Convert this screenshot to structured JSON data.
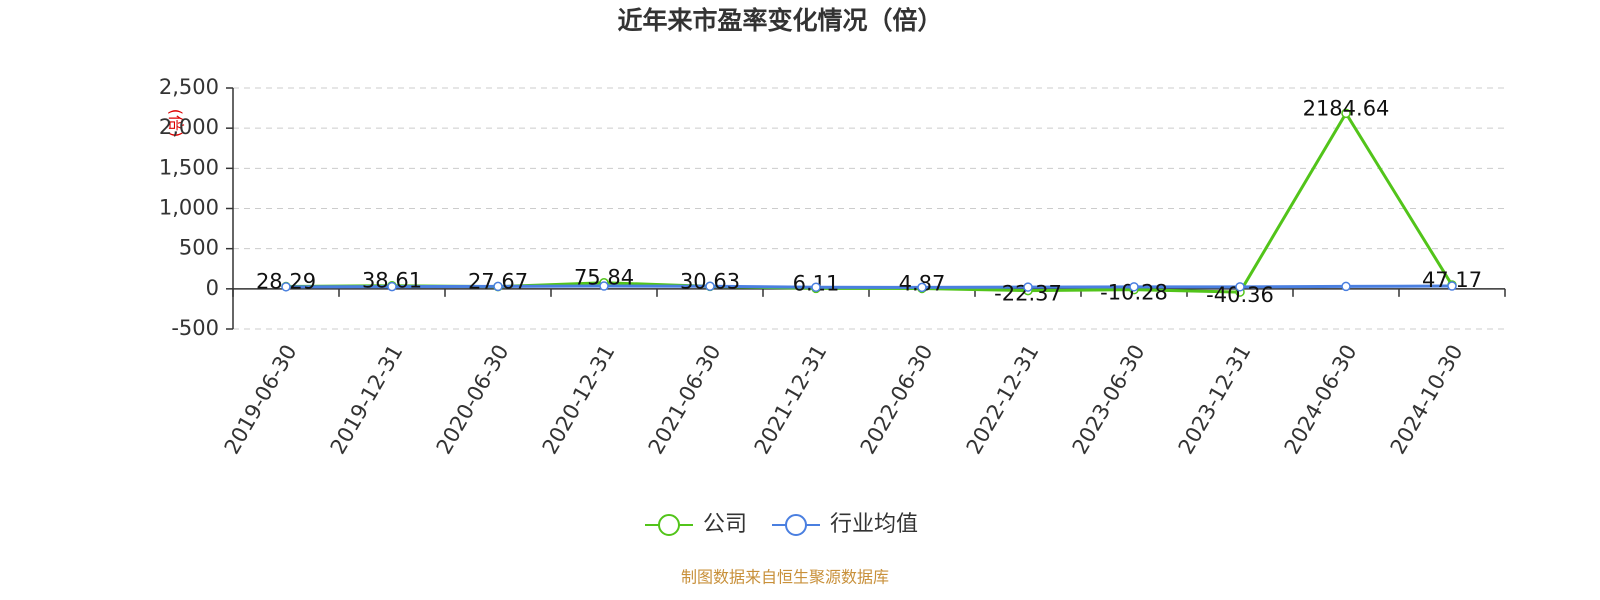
{
  "chart_data": {
    "type": "line",
    "title": "近年来市盈率变化情况（倍）",
    "y_label": "(倍)",
    "source": "制图数据来自恒生聚源数据库",
    "categories": [
      "2019-06-30",
      "2019-12-31",
      "2020-06-30",
      "2020-12-31",
      "2021-06-30",
      "2021-12-31",
      "2022-06-30",
      "2022-12-31",
      "2023-06-30",
      "2023-12-31",
      "2024-06-30",
      "2024-10-30"
    ],
    "series": [
      {
        "name": "公司",
        "color": "#52c41a",
        "values": [
          28.29,
          38.61,
          27.67,
          75.84,
          30.63,
          6.11,
          4.87,
          -22.37,
          -10.28,
          -40.36,
          2184.64,
          47.17
        ],
        "labels": true
      },
      {
        "name": "行业均值",
        "color": "#4a7fe0",
        "values": [
          25,
          28,
          30,
          35,
          32,
          20,
          18,
          22,
          25,
          25,
          30,
          35
        ],
        "labels": false
      }
    ],
    "ylim": [
      -500,
      2500
    ],
    "yticks": [
      -500,
      0,
      500,
      {
        "value": 1000,
        "label": "1,000"
      },
      {
        "value": 1500,
        "label": "1,500"
      },
      {
        "value": 2000,
        "label": "2,000"
      },
      {
        "value": 2500,
        "label": "2,500"
      }
    ],
    "grid": true
  }
}
